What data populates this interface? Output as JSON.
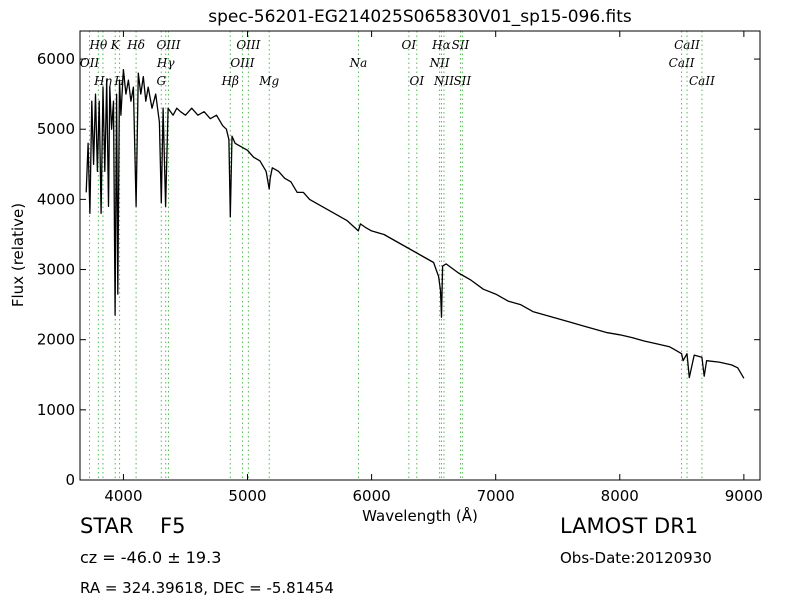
{
  "chart_data": {
    "type": "line",
    "title": "spec-56201-EG214025S065830V01_sp15-096.fits",
    "xlabel": "Wavelength (Å)",
    "ylabel": "Flux (relative)",
    "xlim": [
      3650,
      9130
    ],
    "ylim": [
      0,
      6400
    ],
    "xticks": [
      4000,
      5000,
      6000,
      7000,
      8000,
      9000
    ],
    "yticks": [
      0,
      1000,
      2000,
      3000,
      4000,
      5000,
      6000
    ],
    "line_color": "#000000",
    "marker_line_color": "#55bb55",
    "series": [
      {
        "x": [
          3700,
          3715,
          3730,
          3745,
          3760,
          3775,
          3790,
          3805,
          3820,
          3835,
          3850,
          3865,
          3880,
          3890,
          3905,
          3920,
          3933,
          3945,
          3955,
          3968,
          3980,
          4000,
          4020,
          4040,
          4060,
          4080,
          4102,
          4120,
          4140,
          4160,
          4180,
          4200,
          4230,
          4260,
          4290,
          4305,
          4320,
          4340,
          4360,
          4380,
          4400,
          4430,
          4460,
          4500,
          4550,
          4600,
          4650,
          4700,
          4750,
          4800,
          4830,
          4850,
          4861,
          4875,
          4900,
          4950,
          5000,
          5050,
          5100,
          5150,
          5175,
          5183,
          5200,
          5250,
          5300,
          5350,
          5400,
          5450,
          5500,
          5600,
          5700,
          5800,
          5850,
          5893,
          5910,
          5950,
          6000,
          6100,
          6200,
          6300,
          6400,
          6500,
          6540,
          6555,
          6563,
          6572,
          6600,
          6700,
          6800,
          6900,
          7000,
          7100,
          7200,
          7300,
          7400,
          7500,
          7600,
          7700,
          7800,
          7900,
          8000,
          8100,
          8200,
          8300,
          8400,
          8450,
          8498,
          8510,
          8542,
          8560,
          8600,
          8662,
          8680,
          8700,
          8800,
          8900,
          8950,
          9000
        ],
        "y": [
          4100,
          4800,
          3800,
          5400,
          4500,
          5500,
          4400,
          5400,
          3800,
          5600,
          4400,
          5700,
          3900,
          5600,
          5000,
          5400,
          2350,
          5500,
          2650,
          5700,
          5200,
          5850,
          5500,
          5700,
          5400,
          5600,
          3900,
          5800,
          5500,
          5750,
          5400,
          5600,
          5300,
          5500,
          5100,
          3950,
          5300,
          3900,
          5300,
          5250,
          5200,
          5300,
          5250,
          5200,
          5300,
          5200,
          5250,
          5150,
          5200,
          5050,
          5000,
          4850,
          3750,
          4900,
          4800,
          4750,
          4700,
          4600,
          4550,
          4400,
          4150,
          4300,
          4450,
          4400,
          4300,
          4250,
          4100,
          4100,
          4000,
          3900,
          3800,
          3700,
          3620,
          3550,
          3650,
          3600,
          3550,
          3500,
          3400,
          3300,
          3200,
          3100,
          2900,
          2700,
          2320,
          3050,
          3080,
          2950,
          2850,
          2720,
          2650,
          2550,
          2500,
          2400,
          2350,
          2300,
          2250,
          2200,
          2150,
          2100,
          2070,
          2030,
          1980,
          1940,
          1900,
          1850,
          1800,
          1700,
          1800,
          1460,
          1780,
          1750,
          1480,
          1700,
          1680,
          1640,
          1600,
          1450
        ]
      }
    ],
    "line_markers": [
      {
        "label": "OII",
        "wavelength": 3727,
        "row": 2
      },
      {
        "label": "Hθ",
        "wavelength": 3798,
        "row": 1
      },
      {
        "label": "Hη",
        "wavelength": 3835,
        "row": 3
      },
      {
        "label": "K",
        "wavelength": 3934,
        "row": 1
      },
      {
        "label": "H",
        "wavelength": 3969,
        "row": 3
      },
      {
        "label": "Hδ",
        "wavelength": 4102,
        "row": 1
      },
      {
        "label": "Hγ",
        "wavelength": 4341,
        "row": 2
      },
      {
        "label": "G",
        "wavelength": 4305,
        "row": 3
      },
      {
        "label": "OIII",
        "wavelength": 4363,
        "row": 1
      },
      {
        "label": "Hβ",
        "wavelength": 4861,
        "row": 3
      },
      {
        "label": "OIII",
        "wavelength": 4959,
        "row": 2
      },
      {
        "label": "OIII",
        "wavelength": 5007,
        "row": 1
      },
      {
        "label": "Mg",
        "wavelength": 5175,
        "row": 3
      },
      {
        "label": "Na",
        "wavelength": 5894,
        "row": 2
      },
      {
        "label": "OI",
        "wavelength": 6300,
        "row": 1
      },
      {
        "label": "OI",
        "wavelength": 6364,
        "row": 3
      },
      {
        "label": "NII",
        "wavelength": 6548,
        "row": 2
      },
      {
        "label": "Hα",
        "wavelength": 6563,
        "row": 1
      },
      {
        "label": "NII",
        "wavelength": 6583,
        "row": 3
      },
      {
        "label": "SII",
        "wavelength": 6716,
        "row": 1
      },
      {
        "label": "SII",
        "wavelength": 6731,
        "row": 3
      },
      {
        "label": "CaII",
        "wavelength": 8498,
        "row": 2
      },
      {
        "label": "CaII",
        "wavelength": 8542,
        "row": 1
      },
      {
        "label": "CaII",
        "wavelength": 8662,
        "row": 3
      }
    ],
    "grid": false
  },
  "info": {
    "class": "STAR",
    "subclass": "F5",
    "survey": "LAMOST DR1",
    "redshift": "cz = -46.0 ± 19.3",
    "obs_date": "Obs-Date:20120930",
    "coords": "RA = 324.39618, DEC = -5.81454"
  }
}
